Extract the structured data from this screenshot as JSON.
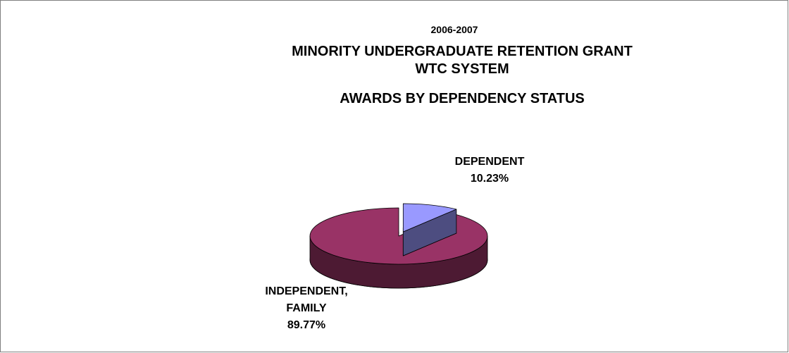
{
  "chart_data": {
    "type": "pie",
    "title_lines": [
      "2006-2007",
      "MINORITY UNDERGRADUATE RETENTION GRANT",
      "WTC SYSTEM",
      "AWARDS BY DEPENDENCY STATUS"
    ],
    "slices": [
      {
        "label_lines": [
          "DEPENDENT"
        ],
        "value": 10.23,
        "value_text": "10.23%",
        "color": "#9999ff",
        "side_color": "#4d4d80",
        "exploded": true
      },
      {
        "label_lines": [
          "INDEPENDENT,",
          "FAMILY"
        ],
        "value": 89.77,
        "value_text": "89.77%",
        "color": "#993366",
        "side_color": "#4d1a33",
        "exploded": false
      }
    ]
  }
}
